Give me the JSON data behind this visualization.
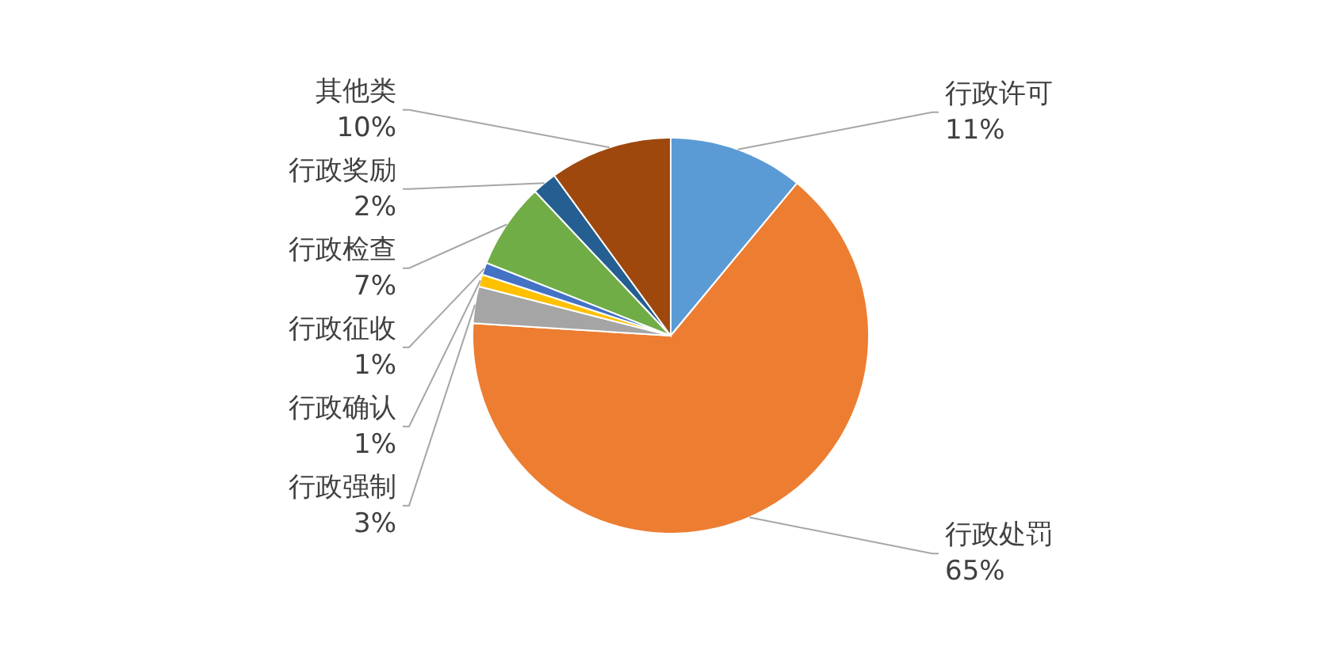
{
  "chart_data": {
    "type": "pie",
    "categories": [
      "行政许可",
      "行政处罚",
      "行政强制",
      "行政确认",
      "行政征收",
      "行政检查",
      "行政奖励",
      "其他类"
    ],
    "values": [
      11,
      65,
      3,
      1,
      1,
      7,
      2,
      10
    ],
    "colors": [
      "#5b9bd5",
      "#ed7d31",
      "#a5a5a5",
      "#ffc000",
      "#4472c4",
      "#70ad47",
      "#255e91",
      "#9e480e"
    ],
    "value_labels": [
      "11%",
      "65%",
      "3%",
      "1%",
      "1%",
      "7%",
      "2%",
      "10%"
    ]
  }
}
